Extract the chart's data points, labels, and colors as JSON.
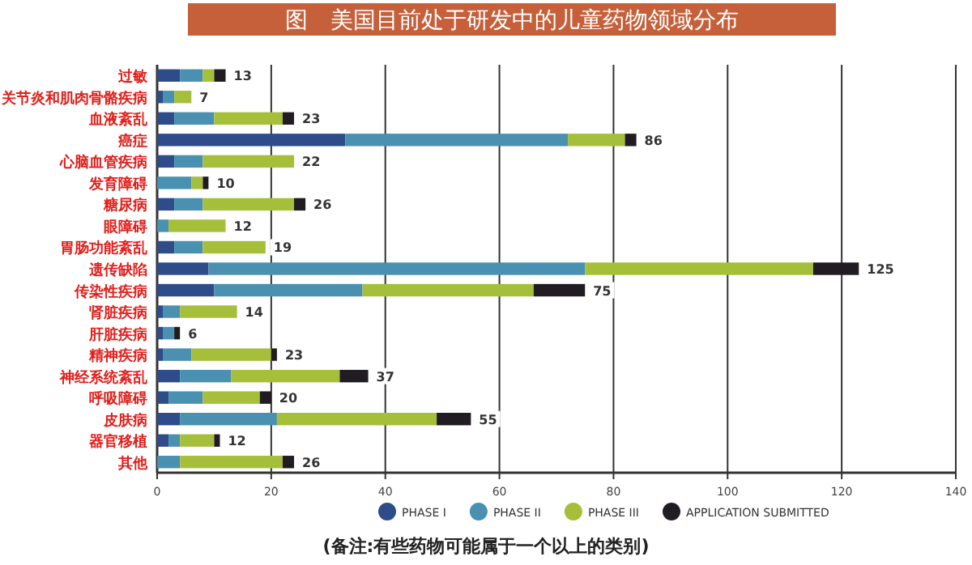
{
  "chart_data": {
    "type": "bar",
    "orientation": "horizontal",
    "stacked": true,
    "title": "图　美国目前处于研发中的儿童药物领域分布",
    "categories": [
      "过敏",
      "关节炎和肌肉骨骼疾病",
      "血液紊乱",
      "癌症",
      "心脑血管疾病",
      "发育障碍",
      "糖尿病",
      "眼障碍",
      "胃肠功能紊乱",
      "遗传缺陷",
      "传染性疾病",
      "肾脏疾病",
      "肝脏疾病",
      "精神疾病",
      "神经系统紊乱",
      "呼吸障碍",
      "皮肤病",
      "器官移植",
      "其他"
    ],
    "series": [
      {
        "name": "PHASE I",
        "color": "#2e4b8a",
        "values": [
          4,
          1,
          3,
          33,
          3,
          null,
          3,
          null,
          3,
          9,
          10,
          1,
          1,
          1,
          4,
          2,
          4,
          2,
          null
        ]
      },
      {
        "name": "PHASE II",
        "color": "#4a90b0",
        "values": [
          4,
          2,
          7,
          39,
          5,
          6,
          5,
          2,
          5,
          66,
          26,
          3,
          2,
          5,
          9,
          6,
          17,
          2,
          4
        ]
      },
      {
        "name": "PHASE III",
        "color": "#a6bf3a",
        "values": [
          2,
          3,
          12,
          10,
          16,
          2,
          16,
          10,
          11,
          40,
          30,
          10,
          null,
          14,
          19,
          10,
          28,
          6,
          18
        ]
      },
      {
        "name": "APPLICATION SUBMITTED",
        "color": "#201c22",
        "values": [
          2,
          null,
          2,
          2,
          null,
          1,
          2,
          null,
          null,
          8,
          9,
          null,
          1,
          1,
          5,
          2,
          6,
          1,
          2
        ]
      }
    ],
    "totals": [
      "13",
      "7",
      "23",
      "86",
      "22",
      "10",
      "26",
      "12",
      "19",
      "125",
      "75",
      "14",
      "6",
      "23",
      "37",
      "20",
      "55",
      "12",
      "26"
    ],
    "xlim": [
      0,
      140
    ],
    "xticks": [
      0,
      20,
      40,
      60,
      80,
      100,
      120,
      140
    ],
    "grid": "x",
    "legend": "bottom",
    "annotations": [
      "(备注:有些药物可能属于一个以上的类别)"
    ]
  }
}
